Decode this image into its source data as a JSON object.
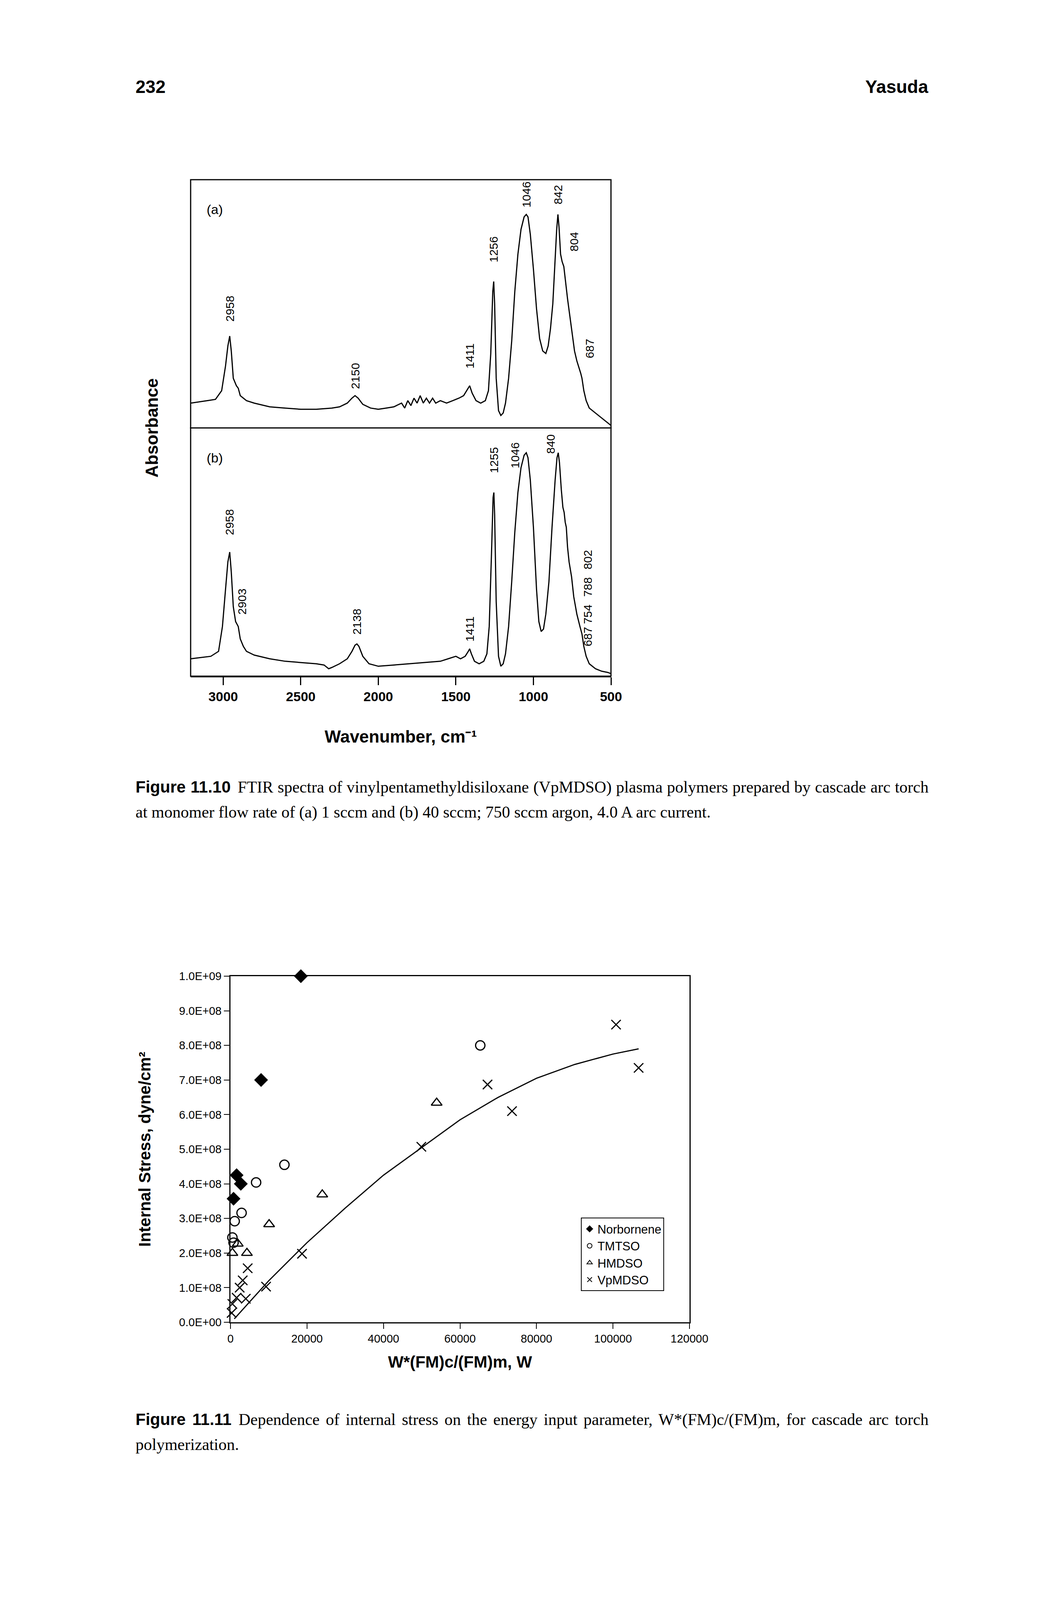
{
  "header": {
    "page_number": "232",
    "running_head": "Yasuda"
  },
  "chart_data": [
    {
      "type": "line",
      "x_label": "Wavenumber, cm⁻¹",
      "y_label": "Absorbance",
      "xlim": [
        3210,
        500
      ],
      "xticks": [
        3000,
        2500,
        2000,
        1500,
        1000,
        500
      ],
      "tick_labels": "x",
      "grid": false,
      "panels": [
        {
          "label": "(a)",
          "ylim": [
            0,
            1
          ],
          "series": [
            {
              "color": "#000000",
              "x": [
                3210,
                3150,
                3100,
                3050,
                3010,
                2985,
                2970,
                2958,
                2948,
                2935,
                2915,
                2903,
                2890,
                2870,
                2850,
                2800,
                2700,
                2600,
                2500,
                2400,
                2300,
                2250,
                2200,
                2170,
                2150,
                2130,
                2100,
                2050,
                2000,
                1950,
                1900,
                1850,
                1830,
                1810,
                1790,
                1770,
                1750,
                1730,
                1710,
                1690,
                1670,
                1650,
                1630,
                1600,
                1560,
                1520,
                1480,
                1450,
                1430,
                1411,
                1395,
                1370,
                1340,
                1310,
                1290,
                1275,
                1262,
                1256,
                1250,
                1240,
                1225,
                1210,
                1195,
                1180,
                1160,
                1140,
                1120,
                1100,
                1080,
                1060,
                1046,
                1035,
                1020,
                1000,
                980,
                960,
                940,
                920,
                905,
                890,
                875,
                860,
                850,
                842,
                835,
                825,
                815,
                804,
                795,
                780,
                765,
                750,
                735,
                720,
                705,
                695,
                687,
                675,
                660,
                640,
                600,
                560,
                520,
                500
              ],
              "values": [
                0.1,
                0.105,
                0.11,
                0.115,
                0.15,
                0.25,
                0.33,
                0.37,
                0.31,
                0.2,
                0.17,
                0.16,
                0.13,
                0.12,
                0.11,
                0.1,
                0.085,
                0.08,
                0.075,
                0.075,
                0.08,
                0.085,
                0.1,
                0.12,
                0.13,
                0.12,
                0.095,
                0.08,
                0.075,
                0.08,
                0.085,
                0.1,
                0.08,
                0.11,
                0.09,
                0.12,
                0.1,
                0.13,
                0.1,
                0.12,
                0.1,
                0.12,
                0.1,
                0.11,
                0.1,
                0.11,
                0.12,
                0.13,
                0.15,
                0.17,
                0.14,
                0.11,
                0.1,
                0.11,
                0.15,
                0.3,
                0.55,
                0.59,
                0.5,
                0.2,
                0.07,
                0.05,
                0.06,
                0.1,
                0.2,
                0.35,
                0.55,
                0.7,
                0.8,
                0.85,
                0.86,
                0.85,
                0.78,
                0.64,
                0.48,
                0.36,
                0.31,
                0.3,
                0.33,
                0.4,
                0.5,
                0.68,
                0.8,
                0.86,
                0.81,
                0.7,
                0.67,
                0.65,
                0.6,
                0.52,
                0.45,
                0.38,
                0.31,
                0.27,
                0.24,
                0.22,
                0.2,
                0.15,
                0.11,
                0.08,
                0.06,
                0.04,
                0.02,
                0.01
              ]
            }
          ],
          "annotations": [
            {
              "text": "2958",
              "x": 2958,
              "y": 0.48
            },
            {
              "text": "2150",
              "x": 2150,
              "y": 0.21
            },
            {
              "text": "1411",
              "x": 1411,
              "y": 0.29
            },
            {
              "text": "1256",
              "x": 1256,
              "y": 0.72
            },
            {
              "text": "1046",
              "x": 1046,
              "y": 0.94
            },
            {
              "text": "842",
              "x": 842,
              "y": 0.94
            },
            {
              "text": "804",
              "x": 737,
              "y": 0.75
            },
            {
              "text": "687",
              "x": 638,
              "y": 0.32
            }
          ]
        },
        {
          "label": "(b)",
          "ylim": [
            0,
            1
          ],
          "series": [
            {
              "color": "#000000",
              "x": [
                3210,
                3150,
                3080,
                3030,
                3005,
                2985,
                2970,
                2958,
                2948,
                2935,
                2920,
                2903,
                2890,
                2870,
                2850,
                2800,
                2700,
                2600,
                2500,
                2400,
                2350,
                2320,
                2300,
                2250,
                2200,
                2170,
                2150,
                2138,
                2125,
                2100,
                2060,
                2000,
                1900,
                1800,
                1700,
                1600,
                1550,
                1500,
                1470,
                1440,
                1420,
                1411,
                1400,
                1380,
                1350,
                1320,
                1300,
                1285,
                1270,
                1260,
                1255,
                1250,
                1240,
                1225,
                1210,
                1195,
                1180,
                1160,
                1140,
                1120,
                1100,
                1080,
                1060,
                1046,
                1035,
                1020,
                1000,
                980,
                965,
                950,
                935,
                920,
                900,
                880,
                860,
                848,
                840,
                832,
                820,
                810,
                802,
                795,
                788,
                780,
                770,
                754,
                740,
                720,
                700,
                687,
                675,
                660,
                640,
                600,
                560,
                520,
                500
              ],
              "values": [
                0.07,
                0.075,
                0.08,
                0.1,
                0.2,
                0.35,
                0.46,
                0.5,
                0.42,
                0.28,
                0.22,
                0.2,
                0.15,
                0.12,
                0.1,
                0.085,
                0.07,
                0.06,
                0.055,
                0.05,
                0.045,
                0.03,
                0.035,
                0.05,
                0.07,
                0.1,
                0.125,
                0.13,
                0.12,
                0.08,
                0.05,
                0.04,
                0.045,
                0.05,
                0.055,
                0.06,
                0.07,
                0.08,
                0.07,
                0.08,
                0.1,
                0.11,
                0.09,
                0.06,
                0.05,
                0.06,
                0.09,
                0.2,
                0.5,
                0.72,
                0.74,
                0.65,
                0.3,
                0.08,
                0.04,
                0.05,
                0.09,
                0.2,
                0.38,
                0.58,
                0.74,
                0.84,
                0.89,
                0.9,
                0.88,
                0.79,
                0.6,
                0.35,
                0.22,
                0.18,
                0.19,
                0.25,
                0.38,
                0.6,
                0.79,
                0.88,
                0.9,
                0.86,
                0.75,
                0.68,
                0.66,
                0.62,
                0.6,
                0.52,
                0.46,
                0.4,
                0.32,
                0.25,
                0.2,
                0.17,
                0.12,
                0.08,
                0.05,
                0.03,
                0.02,
                0.015,
                0.01
              ]
            }
          ],
          "annotations": [
            {
              "text": "2958",
              "x": 2958,
              "y": 0.62
            },
            {
              "text": "2903",
              "x": 2880,
              "y": 0.3
            },
            {
              "text": "2138",
              "x": 2138,
              "y": 0.22
            },
            {
              "text": "1411",
              "x": 1411,
              "y": 0.19
            },
            {
              "text": "1255",
              "x": 1255,
              "y": 0.87
            },
            {
              "text": "1046",
              "x": 1118,
              "y": 0.89
            },
            {
              "text": "840",
              "x": 888,
              "y": 0.935
            },
            {
              "text": "802",
              "x": 650,
              "y": 0.47
            },
            {
              "text": "788",
              "x": 650,
              "y": 0.36
            },
            {
              "text": "754",
              "x": 650,
              "y": 0.25
            },
            {
              "text": "687",
              "x": 650,
              "y": 0.16
            }
          ]
        }
      ],
      "caption": {
        "label": "Figure 11.10",
        "text": "FTIR spectra of vinylpentamethyldisiloxane (VpMDSO) plasma polymers prepared by cascade arc torch at monomer flow rate of (a) 1 sccm and (b) 40 sccm; 750 sccm argon, 4.0 A arc current."
      }
    },
    {
      "type": "scatter",
      "x_label": "W*(FM)c/(FM)m, W",
      "y_label": "Internal Stress, dyne/cm²",
      "xlim": [
        0,
        120000
      ],
      "xticks": [
        0,
        20000,
        40000,
        60000,
        80000,
        100000,
        120000
      ],
      "ylim": [
        0,
        1000000000
      ],
      "yticks": [
        {
          "value": 0,
          "label": "0.0E+00"
        },
        {
          "value": 100000000,
          "label": "1.0E+08"
        },
        {
          "value": 200000000,
          "label": "2.0E+08"
        },
        {
          "value": 300000000,
          "label": "3.0E+08"
        },
        {
          "value": 400000000,
          "label": "4.0E+08"
        },
        {
          "value": 500000000,
          "label": "5.0E+08"
        },
        {
          "value": 600000000,
          "label": "6.0E+08"
        },
        {
          "value": 700000000,
          "label": "7.0E+08"
        },
        {
          "value": 800000000,
          "label": "8.0E+08"
        },
        {
          "value": 900000000,
          "label": "9.0E+08"
        },
        {
          "value": 1000000000,
          "label": "1.0E+09"
        }
      ],
      "grid": false,
      "legend": "lower right",
      "series": [
        {
          "name": "Norbornene",
          "type": "scatter",
          "marker": "diamond",
          "color": "#000000",
          "x": [
            18400,
            8000,
            1600,
            2700,
            800
          ],
          "values": [
            1000000000,
            700000000,
            425000000,
            400000000,
            357000000
          ]
        },
        {
          "name": "TMTSO",
          "type": "scatter",
          "marker": "circle-open",
          "color": "#000000",
          "x": [
            65300,
            14100,
            6700,
            2900,
            1100,
            500,
            800
          ],
          "values": [
            800000000,
            455000000,
            404000000,
            316000000,
            292000000,
            245000000,
            230000000
          ]
        },
        {
          "name": "HMDSO",
          "type": "scatter",
          "marker": "triangle-up-open",
          "color": "#000000",
          "x": [
            53900,
            24000,
            10100,
            4300,
            1900,
            500
          ],
          "values": [
            634000000,
            369000000,
            283000000,
            200000000,
            227000000,
            200000000
          ]
        },
        {
          "name": "VpMDSO",
          "type": "scatter",
          "marker": "x-thin",
          "color": "#000000",
          "x": [
            100800,
            106700,
            67200,
            73600,
            49900,
            18700,
            9300,
            4500,
            3200,
            2400,
            1600,
            4000,
            500,
            300
          ],
          "values": [
            860000000,
            735000000,
            687000000,
            610000000,
            507000000,
            198000000,
            103000000,
            156000000,
            121000000,
            100000000,
            71000000,
            68000000,
            53000000,
            27000000
          ]
        },
        {
          "type": "line",
          "color": "#000000",
          "x": [
            1000,
            10000,
            20000,
            30000,
            40000,
            50000,
            60000,
            70000,
            80000,
            90000,
            100000,
            106700
          ],
          "values": [
            10000000,
            120000000,
            230000000,
            330000000,
            425000000,
            505000000,
            585000000,
            650000000,
            705000000,
            745000000,
            775000000,
            790000000
          ]
        }
      ],
      "caption": {
        "label": "Figure 11.11",
        "text": "Dependence of internal stress on the energy input parameter, W*(FM)c/(FM)m, for cascade arc torch polymerization."
      }
    }
  ]
}
